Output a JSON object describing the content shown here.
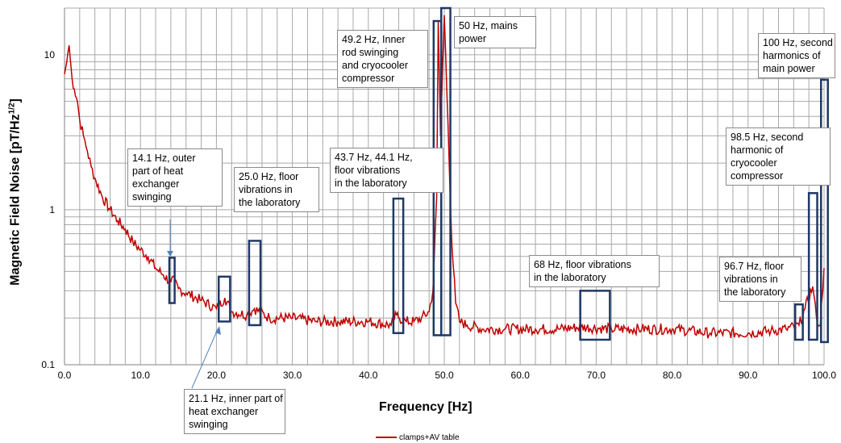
{
  "chart_data": {
    "type": "line",
    "xlabel": "Frequency [Hz]",
    "ylabel_main": "Magnetic Field Noise [pT/Hz",
    "ylabel_sup": "1/2",
    "ylabel_end": "]",
    "xlim": [
      0,
      100
    ],
    "ylim": [
      0.1,
      20
    ],
    "yscale": "log",
    "grid": true,
    "x_ticks": [
      "0.0",
      "10.0",
      "20.0",
      "30.0",
      "40.0",
      "50.0",
      "60.0",
      "70.0",
      "80.0",
      "90.0",
      "100.0"
    ],
    "y_ticks": [
      "0.1",
      "1",
      "10"
    ],
    "legend_position": "bottom-center",
    "series": [
      {
        "name": "clamps+AV table",
        "color": "#c00000",
        "x": [
          0,
          0.3,
          0.6,
          0.8,
          1.0,
          1.3,
          1.7,
          2.0,
          2.5,
          3.0,
          3.5,
          4.0,
          5.0,
          6.0,
          7.0,
          8.0,
          9.0,
          10.0,
          11.0,
          12.0,
          13.0,
          14.0,
          14.1,
          15.0,
          16.0,
          18.0,
          20.0,
          21.1,
          22.0,
          24.0,
          25.0,
          27.0,
          30.0,
          33.0,
          36.0,
          40.0,
          43.0,
          43.7,
          44.1,
          45.0,
          46.0,
          47.0,
          48.0,
          48.5,
          49.0,
          49.2,
          49.5,
          50.0,
          50.5,
          51.0,
          51.5,
          52.0,
          53.0,
          55.0,
          58.0,
          62.0,
          65.0,
          68.0,
          72.0,
          76.0,
          80.0,
          85.0,
          90.0,
          93.0,
          95.0,
          96.7,
          97.5,
          98.5,
          99.0,
          99.5,
          100.0
        ],
        "y": [
          7.5,
          9.0,
          11.5,
          9.0,
          7.0,
          6.0,
          5.0,
          3.8,
          3.0,
          2.4,
          1.9,
          1.6,
          1.2,
          1.0,
          0.85,
          0.75,
          0.62,
          0.55,
          0.5,
          0.42,
          0.38,
          0.34,
          0.36,
          0.31,
          0.29,
          0.26,
          0.23,
          0.27,
          0.22,
          0.21,
          0.23,
          0.2,
          0.2,
          0.19,
          0.19,
          0.19,
          0.18,
          0.21,
          0.2,
          0.19,
          0.19,
          0.2,
          0.22,
          0.3,
          1.2,
          16.5,
          3.0,
          18.0,
          3.5,
          0.6,
          0.25,
          0.19,
          0.18,
          0.17,
          0.17,
          0.17,
          0.17,
          0.175,
          0.17,
          0.17,
          0.17,
          0.16,
          0.16,
          0.165,
          0.17,
          0.18,
          0.23,
          0.32,
          0.2,
          0.18,
          0.42
        ]
      }
    ],
    "markers": [
      {
        "x0": 13.8,
        "x1": 14.5,
        "y0": 0.25,
        "y1": 0.49
      },
      {
        "x0": 20.3,
        "x1": 21.8,
        "y0": 0.19,
        "y1": 0.37
      },
      {
        "x0": 24.3,
        "x1": 25.8,
        "y0": 0.18,
        "y1": 0.63
      },
      {
        "x0": 43.3,
        "x1": 44.6,
        "y0": 0.16,
        "y1": 1.18
      },
      {
        "x0": 48.6,
        "x1": 49.6,
        "y0": 0.155,
        "y1": 16.5
      },
      {
        "x0": 49.6,
        "x1": 50.8,
        "y0": 0.155,
        "y1": 20.0
      },
      {
        "x0": 67.9,
        "x1": 71.8,
        "y0": 0.145,
        "y1": 0.3
      },
      {
        "x0": 96.2,
        "x1": 97.2,
        "y0": 0.145,
        "y1": 0.245
      },
      {
        "x0": 98.0,
        "x1": 99.1,
        "y0": 0.145,
        "y1": 1.28
      },
      {
        "x0": 99.6,
        "x1": 100.5,
        "y0": 0.14,
        "y1": 6.9
      }
    ],
    "annotations": [
      {
        "lines": [
          "14.1 Hz, outer",
          "part of heat",
          "exchanger",
          "swinging"
        ]
      },
      {
        "lines": [
          "25.0 Hz, floor",
          "vibrations in",
          "the laboratory"
        ]
      },
      {
        "lines": [
          "43.7 Hz, 44.1 Hz,",
          "floor vibrations",
          "in the laboratory"
        ]
      },
      {
        "lines": [
          "49.2 Hz, Inner",
          "rod swinging",
          "and cryocooler",
          "compressor"
        ]
      },
      {
        "lines": [
          "50 Hz, mains",
          "power"
        ]
      },
      {
        "lines": [
          "100 Hz, second",
          "harmonics of",
          "main power"
        ]
      },
      {
        "lines": [
          "98.5 Hz, second",
          "harmonic of",
          "cryocooler",
          "compressor"
        ]
      },
      {
        "lines": [
          "68 Hz, floor vibrations",
          "in the laboratory"
        ]
      },
      {
        "lines": [
          "96.7 Hz, floor",
          "vibrations in",
          "the laboratory"
        ]
      },
      {
        "lines": [
          "21.1 Hz, inner part of",
          "heat exchanger",
          "swinging"
        ]
      }
    ]
  }
}
